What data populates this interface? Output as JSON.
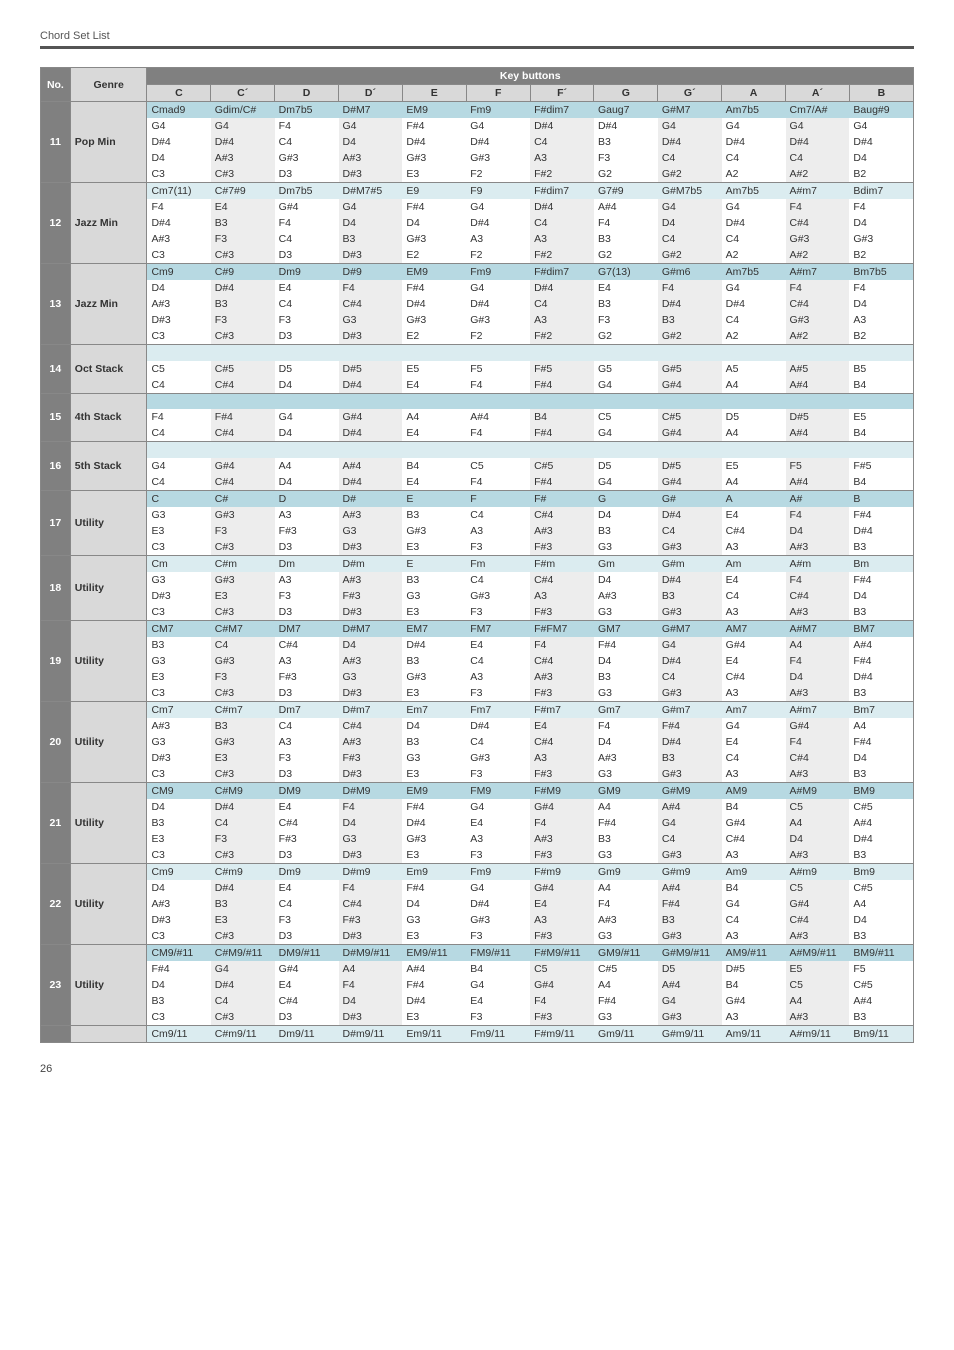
{
  "header_text": "Chord Set List",
  "page_number": "26",
  "colors": {
    "head_row1_bg": "#808080",
    "head_row1_fg": "#ffffff",
    "head_row2_bg": "#d9d9d9",
    "head_row2_fg": "#333333",
    "no_genre_bg": "#d9d9d9",
    "section_bg": "#ededed",
    "row_bg": "#ffffff",
    "top_bg": "#b7d9e2",
    "top_alt_bg": "#dbecf0",
    "border": "#888888"
  },
  "key_header": "Key buttons",
  "head_no": "No.",
  "head_genre": "Genre",
  "key_cols": [
    "C",
    "C´",
    "D",
    "D´",
    "E",
    "F",
    "F´",
    "G",
    "G´",
    "A",
    "A´",
    "B"
  ],
  "groups": [
    {
      "no": "11",
      "genre": "Pop Min",
      "top_bg": "top_bg",
      "rows": [
        {
          "top": true,
          "cells": [
            "Cmad9",
            "Gdim/C#",
            "Dm7b5",
            "D#M7",
            "EM9",
            "Fm9",
            "F#dim7",
            "Gaug7",
            "G#M7",
            "Am7b5",
            "Cm7/A#",
            "Baug#9"
          ]
        },
        {
          "cells": [
            "G4",
            "G4",
            "F4",
            "G4",
            "F#4",
            "G4",
            "D#4",
            "D#4",
            "G4",
            "G4",
            "G4",
            "G4"
          ]
        },
        {
          "cells": [
            "D#4",
            "D#4",
            "C4",
            "D4",
            "D#4",
            "D#4",
            "C4",
            "B3",
            "D#4",
            "D#4",
            "D#4",
            "D#4"
          ]
        },
        {
          "cells": [
            "D4",
            "A#3",
            "G#3",
            "A#3",
            "G#3",
            "G#3",
            "A3",
            "F3",
            "C4",
            "C4",
            "C4",
            "D4"
          ]
        },
        {
          "cells": [
            "C3",
            "C#3",
            "D3",
            "D#3",
            "E3",
            "F2",
            "F#2",
            "G2",
            "G#2",
            "A2",
            "A#2",
            "B2"
          ]
        }
      ]
    },
    {
      "no": "12",
      "genre": "Jazz Min",
      "top_bg": "top_alt_bg",
      "rows": [
        {
          "top": true,
          "cells": [
            "Cm7(11)",
            "C#7#9",
            "Dm7b5",
            "D#M7#5",
            "E9",
            "F9",
            "F#dim7",
            "G7#9",
            "G#M7b5",
            "Am7b5",
            "A#m7",
            "Bdim7"
          ]
        },
        {
          "cells": [
            "F4",
            "E4",
            "G#4",
            "G4",
            "F#4",
            "G4",
            "D#4",
            "A#4",
            "G4",
            "G4",
            "F4",
            "F4"
          ]
        },
        {
          "cells": [
            "D#4",
            "B3",
            "F4",
            "D4",
            "D4",
            "D#4",
            "C4",
            "F4",
            "D4",
            "D#4",
            "C#4",
            "D4"
          ]
        },
        {
          "cells": [
            "A#3",
            "F3",
            "C4",
            "B3",
            "G#3",
            "A3",
            "A3",
            "B3",
            "C4",
            "C4",
            "G#3",
            "G#3"
          ]
        },
        {
          "cells": [
            "C3",
            "C#3",
            "D3",
            "D#3",
            "E2",
            "F2",
            "F#2",
            "G2",
            "G#2",
            "A2",
            "A#2",
            "B2"
          ]
        }
      ]
    },
    {
      "no": "13",
      "genre": "Jazz Min",
      "top_bg": "top_bg",
      "rows": [
        {
          "top": true,
          "cells": [
            "Cm9",
            "C#9",
            "Dm9",
            "D#9",
            "EM9",
            "Fm9",
            "F#dim7",
            "G7(13)",
            "G#m6",
            "Am7b5",
            "A#m7",
            "Bm7b5"
          ]
        },
        {
          "cells": [
            "D4",
            "D#4",
            "E4",
            "F4",
            "F#4",
            "G4",
            "D#4",
            "E4",
            "F4",
            "G4",
            "F4",
            "F4"
          ]
        },
        {
          "cells": [
            "A#3",
            "B3",
            "C4",
            "C#4",
            "D#4",
            "D#4",
            "C4",
            "B3",
            "D#4",
            "D#4",
            "C#4",
            "D4"
          ]
        },
        {
          "cells": [
            "D#3",
            "F3",
            "F3",
            "G3",
            "G#3",
            "G#3",
            "A3",
            "F3",
            "B3",
            "C4",
            "G#3",
            "A3"
          ]
        },
        {
          "cells": [
            "C3",
            "C#3",
            "D3",
            "D#3",
            "E2",
            "F2",
            "F#2",
            "G2",
            "G#2",
            "A2",
            "A#2",
            "B2"
          ]
        }
      ]
    },
    {
      "no": "14",
      "genre": "Oct Stack",
      "top_bg": "top_alt_bg",
      "rows": [
        {
          "top": true,
          "cells": [
            "",
            "",
            "",
            "",
            "",
            "",
            "",
            "",
            "",
            "",
            "",
            ""
          ]
        },
        {
          "cells": [
            "C5",
            "C#5",
            "D5",
            "D#5",
            "E5",
            "F5",
            "F#5",
            "G5",
            "G#5",
            "A5",
            "A#5",
            "B5"
          ]
        },
        {
          "cells": [
            "C4",
            "C#4",
            "D4",
            "D#4",
            "E4",
            "F4",
            "F#4",
            "G4",
            "G#4",
            "A4",
            "A#4",
            "B4"
          ]
        }
      ]
    },
    {
      "no": "15",
      "genre": "4th Stack",
      "top_bg": "top_bg",
      "rows": [
        {
          "top": true,
          "cells": [
            "",
            "",
            "",
            "",
            "",
            "",
            "",
            "",
            "",
            "",
            "",
            ""
          ]
        },
        {
          "cells": [
            "F4",
            "F#4",
            "G4",
            "G#4",
            "A4",
            "A#4",
            "B4",
            "C5",
            "C#5",
            "D5",
            "D#5",
            "E5"
          ]
        },
        {
          "cells": [
            "C4",
            "C#4",
            "D4",
            "D#4",
            "E4",
            "F4",
            "F#4",
            "G4",
            "G#4",
            "A4",
            "A#4",
            "B4"
          ]
        }
      ]
    },
    {
      "no": "16",
      "genre": "5th Stack",
      "top_bg": "top_alt_bg",
      "rows": [
        {
          "top": true,
          "cells": [
            "",
            "",
            "",
            "",
            "",
            "",
            "",
            "",
            "",
            "",
            "",
            ""
          ]
        },
        {
          "cells": [
            "G4",
            "G#4",
            "A4",
            "A#4",
            "B4",
            "C5",
            "C#5",
            "D5",
            "D#5",
            "E5",
            "F5",
            "F#5"
          ]
        },
        {
          "cells": [
            "C4",
            "C#4",
            "D4",
            "D#4",
            "E4",
            "F4",
            "F#4",
            "G4",
            "G#4",
            "A4",
            "A#4",
            "B4"
          ]
        }
      ]
    },
    {
      "no": "17",
      "genre": "Utility",
      "top_bg": "top_bg",
      "rows": [
        {
          "top": true,
          "cells": [
            "C",
            "C#",
            "D",
            "D#",
            "E",
            "F",
            "F#",
            "G",
            "G#",
            "A",
            "A#",
            "B"
          ]
        },
        {
          "cells": [
            "G3",
            "G#3",
            "A3",
            "A#3",
            "B3",
            "C4",
            "C#4",
            "D4",
            "D#4",
            "E4",
            "F4",
            "F#4"
          ]
        },
        {
          "cells": [
            "E3",
            "F3",
            "F#3",
            "G3",
            "G#3",
            "A3",
            "A#3",
            "B3",
            "C4",
            "C#4",
            "D4",
            "D#4"
          ]
        },
        {
          "cells": [
            "C3",
            "C#3",
            "D3",
            "D#3",
            "E3",
            "F3",
            "F#3",
            "G3",
            "G#3",
            "A3",
            "A#3",
            "B3"
          ]
        }
      ]
    },
    {
      "no": "18",
      "genre": "Utility",
      "top_bg": "top_alt_bg",
      "rows": [
        {
          "top": true,
          "cells": [
            "Cm",
            "C#m",
            "Dm",
            "D#m",
            "E",
            "Fm",
            "F#m",
            "Gm",
            "G#m",
            "Am",
            "A#m",
            "Bm"
          ]
        },
        {
          "cells": [
            "G3",
            "G#3",
            "A3",
            "A#3",
            "B3",
            "C4",
            "C#4",
            "D4",
            "D#4",
            "E4",
            "F4",
            "F#4"
          ]
        },
        {
          "cells": [
            "D#3",
            "E3",
            "F3",
            "F#3",
            "G3",
            "G#3",
            "A3",
            "A#3",
            "B3",
            "C4",
            "C#4",
            "D4"
          ]
        },
        {
          "cells": [
            "C3",
            "C#3",
            "D3",
            "D#3",
            "E3",
            "F3",
            "F#3",
            "G3",
            "G#3",
            "A3",
            "A#3",
            "B3"
          ]
        }
      ]
    },
    {
      "no": "19",
      "genre": "Utility",
      "top_bg": "top_bg",
      "rows": [
        {
          "top": true,
          "cells": [
            "CM7",
            "C#M7",
            "DM7",
            "D#M7",
            "EM7",
            "FM7",
            "F#FM7",
            "GM7",
            "G#M7",
            "AM7",
            "A#M7",
            "BM7"
          ]
        },
        {
          "cells": [
            "B3",
            "C4",
            "C#4",
            "D4",
            "D#4",
            "E4",
            "F4",
            "F#4",
            "G4",
            "G#4",
            "A4",
            "A#4"
          ]
        },
        {
          "cells": [
            "G3",
            "G#3",
            "A3",
            "A#3",
            "B3",
            "C4",
            "C#4",
            "D4",
            "D#4",
            "E4",
            "F4",
            "F#4"
          ]
        },
        {
          "cells": [
            "E3",
            "F3",
            "F#3",
            "G3",
            "G#3",
            "A3",
            "A#3",
            "B3",
            "C4",
            "C#4",
            "D4",
            "D#4"
          ]
        },
        {
          "cells": [
            "C3",
            "C#3",
            "D3",
            "D#3",
            "E3",
            "F3",
            "F#3",
            "G3",
            "G#3",
            "A3",
            "A#3",
            "B3"
          ]
        }
      ]
    },
    {
      "no": "20",
      "genre": "Utility",
      "top_bg": "top_alt_bg",
      "rows": [
        {
          "top": true,
          "cells": [
            "Cm7",
            "C#m7",
            "Dm7",
            "D#m7",
            "Em7",
            "Fm7",
            "F#m7",
            "Gm7",
            "G#m7",
            "Am7",
            "A#m7",
            "Bm7"
          ]
        },
        {
          "cells": [
            "A#3",
            "B3",
            "C4",
            "C#4",
            "D4",
            "D#4",
            "E4",
            "F4",
            "F#4",
            "G4",
            "G#4",
            "A4"
          ]
        },
        {
          "cells": [
            "G3",
            "G#3",
            "A3",
            "A#3",
            "B3",
            "C4",
            "C#4",
            "D4",
            "D#4",
            "E4",
            "F4",
            "F#4"
          ]
        },
        {
          "cells": [
            "D#3",
            "E3",
            "F3",
            "F#3",
            "G3",
            "G#3",
            "A3",
            "A#3",
            "B3",
            "C4",
            "C#4",
            "D4"
          ]
        },
        {
          "cells": [
            "C3",
            "C#3",
            "D3",
            "D#3",
            "E3",
            "F3",
            "F#3",
            "G3",
            "G#3",
            "A3",
            "A#3",
            "B3"
          ]
        }
      ]
    },
    {
      "no": "21",
      "genre": "Utility",
      "top_bg": "top_bg",
      "rows": [
        {
          "top": true,
          "cells": [
            "CM9",
            "C#M9",
            "DM9",
            "D#M9",
            "EM9",
            "FM9",
            "F#M9",
            "GM9",
            "G#M9",
            "AM9",
            "A#M9",
            "BM9"
          ]
        },
        {
          "cells": [
            "D4",
            "D#4",
            "E4",
            "F4",
            "F#4",
            "G4",
            "G#4",
            "A4",
            "A#4",
            "B4",
            "C5",
            "C#5"
          ]
        },
        {
          "cells": [
            "B3",
            "C4",
            "C#4",
            "D4",
            "D#4",
            "E4",
            "F4",
            "F#4",
            "G4",
            "G#4",
            "A4",
            "A#4"
          ]
        },
        {
          "cells": [
            "E3",
            "F3",
            "F#3",
            "G3",
            "G#3",
            "A3",
            "A#3",
            "B3",
            "C4",
            "C#4",
            "D4",
            "D#4"
          ]
        },
        {
          "cells": [
            "C3",
            "C#3",
            "D3",
            "D#3",
            "E3",
            "F3",
            "F#3",
            "G3",
            "G#3",
            "A3",
            "A#3",
            "B3"
          ]
        }
      ]
    },
    {
      "no": "22",
      "genre": "Utility",
      "top_bg": "top_alt_bg",
      "rows": [
        {
          "top": true,
          "cells": [
            "Cm9",
            "C#m9",
            "Dm9",
            "D#m9",
            "Em9",
            "Fm9",
            "F#m9",
            "Gm9",
            "G#m9",
            "Am9",
            "A#m9",
            "Bm9"
          ]
        },
        {
          "cells": [
            "D4",
            "D#4",
            "E4",
            "F4",
            "F#4",
            "G4",
            "G#4",
            "A4",
            "A#4",
            "B4",
            "C5",
            "C#5"
          ]
        },
        {
          "cells": [
            "A#3",
            "B3",
            "C4",
            "C#4",
            "D4",
            "D#4",
            "E4",
            "F4",
            "F#4",
            "G4",
            "G#4",
            "A4"
          ]
        },
        {
          "cells": [
            "D#3",
            "E3",
            "F3",
            "F#3",
            "G3",
            "G#3",
            "A3",
            "A#3",
            "B3",
            "C4",
            "C#4",
            "D4"
          ]
        },
        {
          "cells": [
            "C3",
            "C#3",
            "D3",
            "D#3",
            "E3",
            "F3",
            "F#3",
            "G3",
            "G#3",
            "A3",
            "A#3",
            "B3"
          ]
        }
      ]
    },
    {
      "no": "23",
      "genre": "Utility",
      "top_bg": "top_bg",
      "rows": [
        {
          "top": true,
          "cells": [
            "CM9/#11",
            "C#M9/#11",
            "DM9/#11",
            "D#M9/#11",
            "EM9/#11",
            "FM9/#11",
            "F#M9/#11",
            "GM9/#11",
            "G#M9/#11",
            "AM9/#11",
            "A#M9/#11",
            "BM9/#11"
          ]
        },
        {
          "cells": [
            "F#4",
            "G4",
            "G#4",
            "A4",
            "A#4",
            "B4",
            "C5",
            "C#5",
            "D5",
            "D#5",
            "E5",
            "F5"
          ]
        },
        {
          "cells": [
            "D4",
            "D#4",
            "E4",
            "F4",
            "F#4",
            "G4",
            "G#4",
            "A4",
            "A#4",
            "B4",
            "C5",
            "C#5"
          ]
        },
        {
          "cells": [
            "B3",
            "C4",
            "C#4",
            "D4",
            "D#4",
            "E4",
            "F4",
            "F#4",
            "G4",
            "G#4",
            "A4",
            "A#4"
          ]
        },
        {
          "cells": [
            "C3",
            "C#3",
            "D3",
            "D#3",
            "E3",
            "F3",
            "F#3",
            "G3",
            "G#3",
            "A3",
            "A#3",
            "B3"
          ]
        }
      ]
    },
    {
      "no": "",
      "genre": "",
      "top_bg": "top_alt_bg",
      "no_label": false,
      "rows": [
        {
          "top": true,
          "cells": [
            "Cm9/11",
            "C#m9/11",
            "Dm9/11",
            "D#m9/11",
            "Em9/11",
            "Fm9/11",
            "F#m9/11",
            "Gm9/11",
            "G#m9/11",
            "Am9/11",
            "A#m9/11",
            "Bm9/11"
          ]
        }
      ]
    }
  ]
}
